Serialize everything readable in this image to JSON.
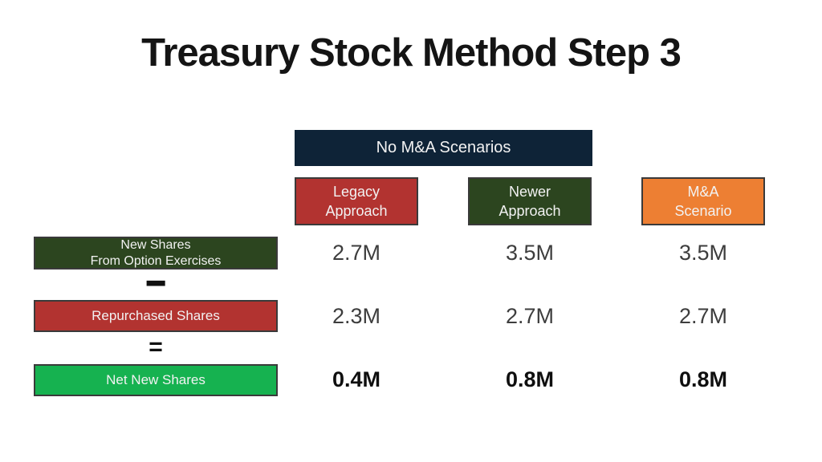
{
  "title": "Treasury Stock Method Step 3",
  "table": {
    "group_header": "No M&A Scenarios",
    "columns": [
      {
        "label": "Legacy\nApproach"
      },
      {
        "label": "Newer\nApproach"
      },
      {
        "label": "M&A\nScenario"
      }
    ],
    "rows": [
      {
        "label": "New Shares\nFrom Option Exercises",
        "values": [
          "2.7M",
          "3.5M",
          "3.5M"
        ],
        "emphasis": false
      },
      {
        "label": "Repurchased Shares",
        "values": [
          "2.3M",
          "2.7M",
          "2.7M"
        ],
        "emphasis": false
      },
      {
        "label": "Net New Shares",
        "values": [
          "0.4M",
          "0.8M",
          "0.8M"
        ],
        "emphasis": true
      }
    ],
    "operators": {
      "minus": "−",
      "equals": "="
    }
  },
  "colors": {
    "background": "#ffffff",
    "title_text": "#141414",
    "group_header_bg": "#0e2337",
    "legacy_bg": "#b23330",
    "newer_bg": "#2c451f",
    "mna_bg": "#ed7f33",
    "new_shares_bg": "#2c451f",
    "repurchased_bg": "#b23330",
    "net_new_bg": "#16b250",
    "box_border": "#3a3a3a",
    "box_text": "#f2f2f2",
    "value_text": "#3d3d3d",
    "emphasis_value_text": "#0f0f0f"
  },
  "chart_data": {
    "type": "table",
    "title": "Treasury Stock Method Step 3",
    "group_header": "No M&A Scenarios",
    "columns": [
      "Legacy Approach",
      "Newer Approach",
      "M&A Scenario"
    ],
    "rows": [
      {
        "label": "New Shares From Option Exercises",
        "values_millions": [
          2.7,
          3.5,
          3.5
        ]
      },
      {
        "label": "Repurchased Shares",
        "operator_before": "−",
        "values_millions": [
          2.3,
          2.7,
          2.7
        ]
      },
      {
        "label": "Net New Shares",
        "operator_before": "=",
        "values_millions": [
          0.4,
          0.8,
          0.8
        ]
      }
    ]
  }
}
